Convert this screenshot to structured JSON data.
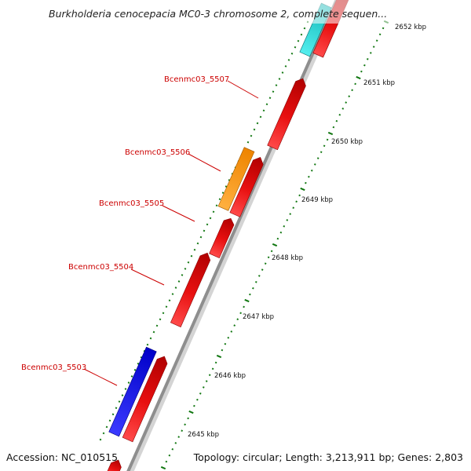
{
  "map": {
    "title": "Burkholderia cenocepacia MC0-3 chromosome 2, complete sequen...",
    "accession": "Accession: NC_010515",
    "summary": "Topology: circular; Length: 3,213,911 bp; Genes: 2,803"
  },
  "scale": {
    "ticks": [
      "2645 kbp",
      "2646 kbp",
      "2647 kbp",
      "2648 kbp",
      "2649 kbp",
      "2650 kbp",
      "2651 kbp",
      "2652 kbp"
    ]
  },
  "gene_labels": [
    "Bcenmc03_5503",
    "Bcenmc03_5504",
    "Bcenmc03_5505",
    "Bcenmc03_5506",
    "Bcenmc03_5507"
  ],
  "colors": {
    "forward_cds": "#ee1111",
    "reverse_blue": "#1111dd",
    "reverse_orange": "#ff9911",
    "reverse_cyan": "#22cccc",
    "tick_green": "#117711",
    "backbone": "#9a9a9a",
    "label_red": "#cc0000"
  }
}
